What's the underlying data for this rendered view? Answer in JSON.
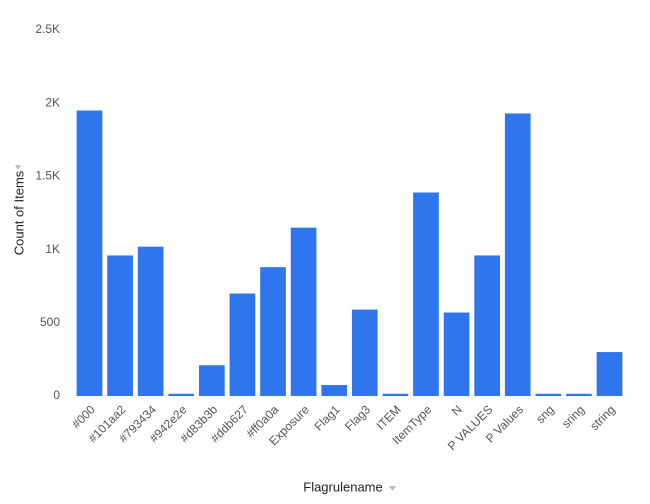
{
  "chart_data": {
    "type": "bar",
    "x_label": "Flagrulename",
    "y_label": "Count of Items",
    "categories": [
      "#000",
      "#101aa2",
      "#793434",
      "#942e2e",
      "#d83b3b",
      "#ddb627",
      "#ff0a0a",
      "Exposure",
      "Flag1",
      "Flag3",
      "ITEM",
      "ItemType",
      "N",
      "P VALUES",
      "P Values",
      "sng",
      "sring",
      "string"
    ],
    "values": [
      1950,
      960,
      1020,
      15,
      210,
      700,
      880,
      1150,
      75,
      590,
      15,
      1390,
      570,
      960,
      1930,
      15,
      15,
      300
    ],
    "color": "#2f76ee",
    "ylim": [
      0,
      2500
    ],
    "yticks": [
      0,
      500,
      {
        "value": 1000,
        "label": "1K"
      },
      {
        "value": 1500,
        "label": "1.5K"
      },
      {
        "value": 2000,
        "label": "2K"
      },
      {
        "value": 2500,
        "label": "2.5K"
      }
    ],
    "grid": false
  }
}
